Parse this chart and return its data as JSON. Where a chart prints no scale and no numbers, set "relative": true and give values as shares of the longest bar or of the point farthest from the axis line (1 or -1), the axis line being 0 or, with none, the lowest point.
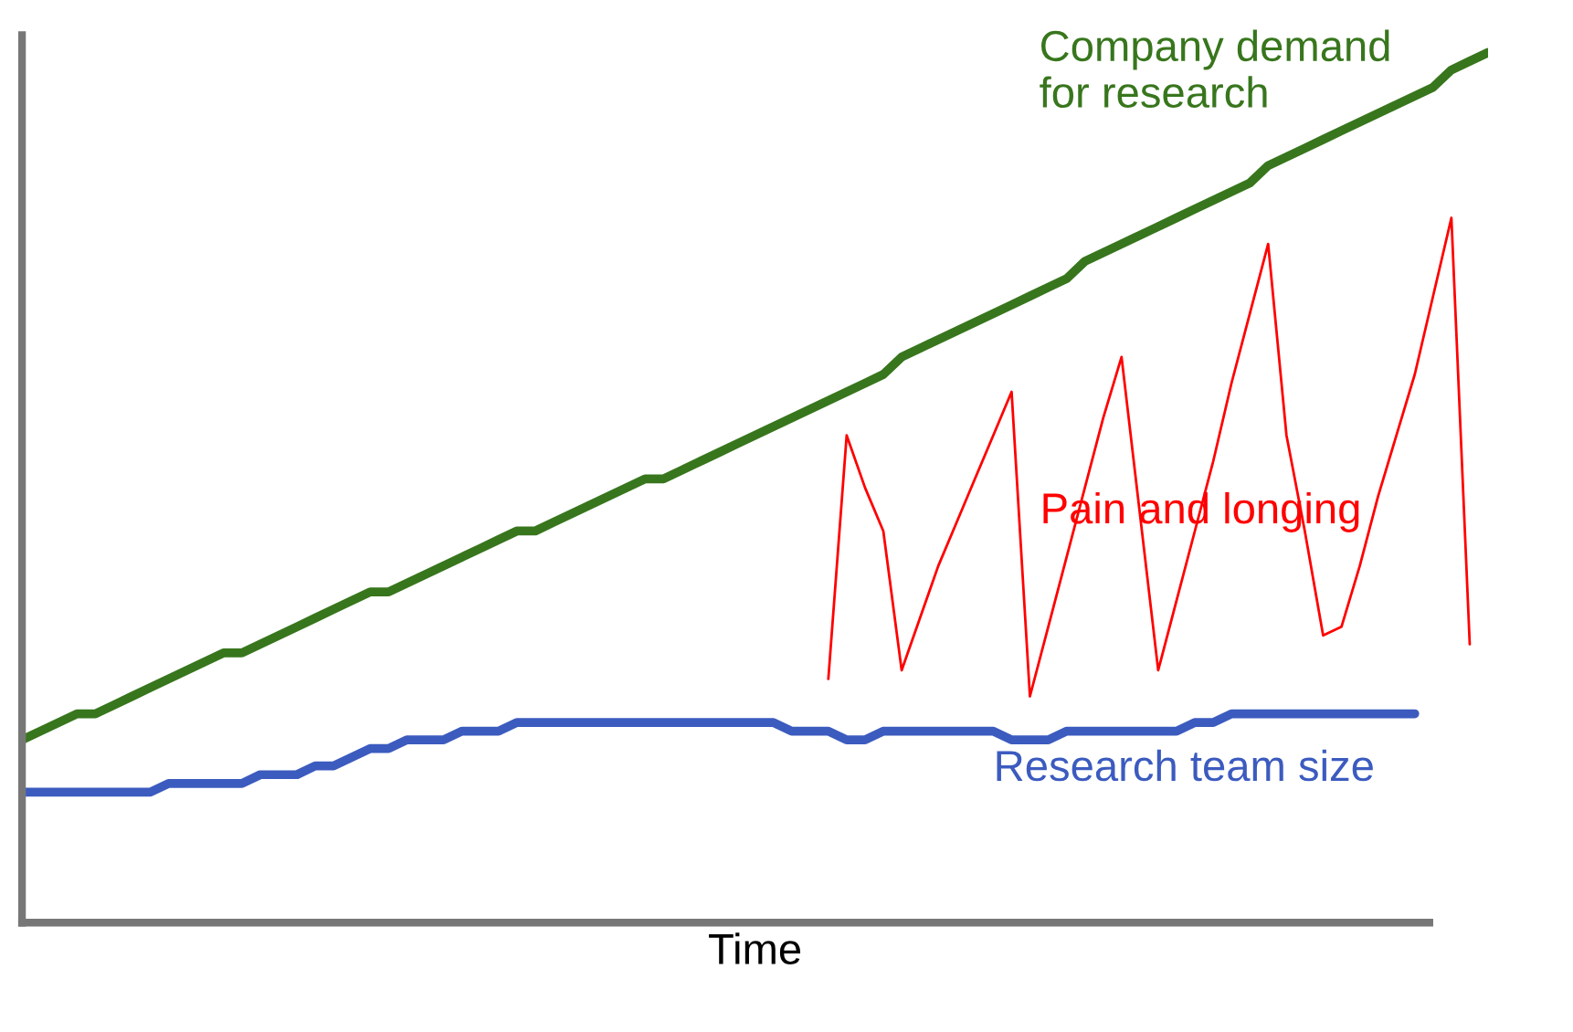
{
  "chart_data": {
    "type": "line",
    "relative": true,
    "xlabel": "Time",
    "categories": [
      null,
      null,
      null,
      null,
      null,
      null,
      null,
      null,
      null,
      null,
      null,
      null,
      null,
      null,
      null,
      null,
      null,
      null,
      null,
      null,
      null,
      null,
      null,
      null,
      null,
      null,
      null,
      null,
      null,
      null,
      null,
      null,
      null,
      null,
      null,
      null,
      null,
      null,
      null,
      null,
      null,
      null,
      null,
      null,
      null,
      null,
      null,
      null,
      null,
      null,
      null,
      null,
      null,
      null,
      null,
      null,
      null,
      null,
      null,
      null,
      null,
      null,
      null,
      null,
      null,
      null,
      null,
      null,
      null,
      null,
      null,
      null,
      null,
      null,
      null,
      null,
      null,
      null,
      null,
      null,
      null
    ],
    "series": [
      {
        "name": "Company demand\nfor research",
        "color": "#38761d",
        "values": [
          0.21,
          0.22,
          0.23,
          0.24,
          0.24,
          0.25,
          0.26,
          0.27,
          0.28,
          0.29,
          0.3,
          0.31,
          0.31,
          0.32,
          0.33,
          0.34,
          0.35,
          0.36,
          0.37,
          0.38,
          0.38,
          0.39,
          0.4,
          0.41,
          0.42,
          0.43,
          0.44,
          0.45,
          0.45,
          0.46,
          0.47,
          0.48,
          0.49,
          0.5,
          0.51,
          0.51,
          0.52,
          0.53,
          0.54,
          0.55,
          0.56,
          0.57,
          0.58,
          0.59,
          0.6,
          0.61,
          0.62,
          0.63,
          0.65,
          0.66,
          0.67,
          0.68,
          0.69,
          0.7,
          0.71,
          0.72,
          0.73,
          0.74,
          0.76,
          0.77,
          0.78,
          0.79,
          0.8,
          0.81,
          0.82,
          0.83,
          0.84,
          0.85,
          0.87,
          0.88,
          0.89,
          0.9,
          0.91,
          0.92,
          0.93,
          0.94,
          0.95,
          0.96,
          0.98,
          0.99,
          1.0
        ]
      },
      {
        "name": "Research team size",
        "color": "#3c5bbf",
        "values": [
          0.15,
          0.15,
          0.15,
          0.15,
          0.15,
          0.15,
          0.15,
          0.15,
          0.16,
          0.16,
          0.16,
          0.16,
          0.16,
          0.17,
          0.17,
          0.17,
          0.18,
          0.18,
          0.19,
          0.2,
          0.2,
          0.21,
          0.21,
          0.21,
          0.22,
          0.22,
          0.22,
          0.23,
          0.23,
          0.23,
          0.23,
          0.23,
          0.23,
          0.23,
          0.23,
          0.23,
          0.23,
          0.23,
          0.23,
          0.23,
          0.23,
          0.23,
          0.22,
          0.22,
          0.22,
          0.21,
          0.21,
          0.22,
          0.22,
          0.22,
          0.22,
          0.22,
          0.22,
          0.22,
          0.21,
          0.21,
          0.21,
          0.22,
          0.22,
          0.22,
          0.22,
          0.22,
          0.22,
          0.22,
          0.23,
          0.23,
          0.24,
          0.24,
          0.24,
          0.24,
          0.24,
          0.24,
          0.24,
          0.24,
          0.24,
          0.24,
          0.24,
          null,
          null,
          null,
          null
        ]
      },
      {
        "name": "Pain and longing",
        "color": "#ff0000",
        "values": [
          null,
          null,
          null,
          null,
          null,
          null,
          null,
          null,
          null,
          null,
          null,
          null,
          null,
          null,
          null,
          null,
          null,
          null,
          null,
          null,
          null,
          null,
          null,
          null,
          null,
          null,
          null,
          null,
          null,
          null,
          null,
          null,
          null,
          null,
          null,
          null,
          null,
          null,
          null,
          null,
          null,
          null,
          null,
          null,
          0.28,
          0.56,
          0.5,
          0.45,
          0.29,
          0.35,
          0.41,
          0.46,
          0.51,
          0.56,
          0.61,
          0.26,
          0.34,
          0.42,
          0.5,
          0.58,
          0.65,
          0.47,
          0.29,
          0.37,
          0.45,
          0.53,
          0.62,
          0.7,
          0.78,
          0.56,
          0.45,
          0.33,
          0.34,
          0.41,
          0.49,
          0.56,
          0.63,
          0.72,
          0.81,
          0.32,
          null
        ]
      }
    ]
  }
}
